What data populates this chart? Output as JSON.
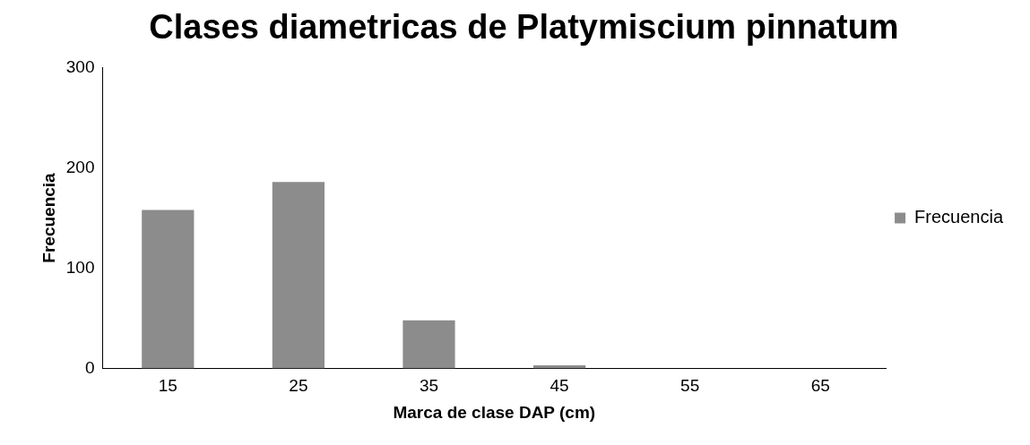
{
  "chart_data": {
    "type": "bar",
    "title": "Clases diametricas de Platymiscium pinnatum",
    "xlabel": "Marca de clase DAP (cm)",
    "ylabel": "Frecuencia",
    "categories": [
      "15",
      "25",
      "35",
      "45",
      "55",
      "65"
    ],
    "series": [
      {
        "name": "Frecuencia",
        "color": "#8c8c8c",
        "values": [
          158,
          186,
          48,
          3,
          0,
          0
        ]
      }
    ],
    "ylim": [
      0,
      300
    ],
    "yticks": [
      0,
      100,
      200,
      300
    ],
    "grid": false,
    "legend": "right"
  }
}
